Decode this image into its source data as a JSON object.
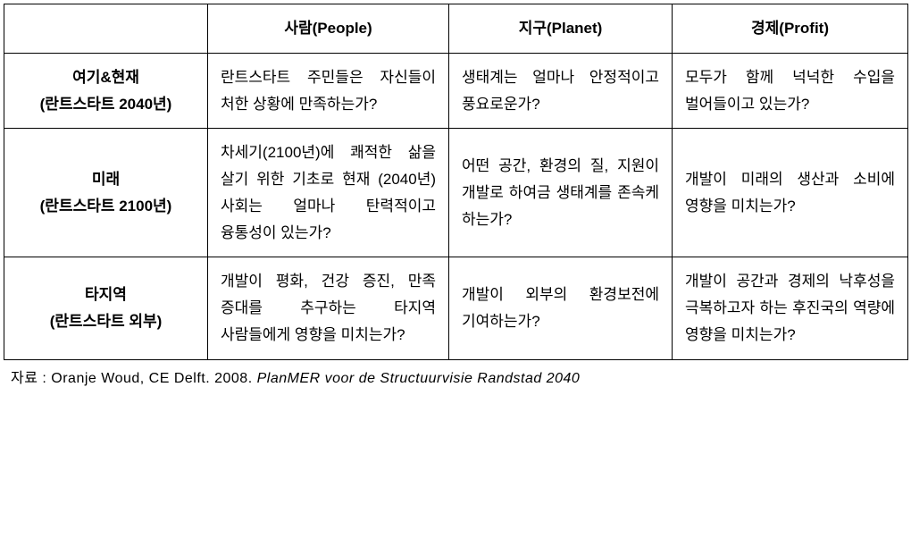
{
  "header": {
    "blank": "",
    "people": "사람(People)",
    "planet": "지구(Planet)",
    "profit": "경제(Profit)"
  },
  "rows": [
    {
      "label_line1": "여기&현재",
      "label_line2": "(란트스타트 2040년)",
      "people": "란트스타트 주민들은 자신들이 처한 상황에 만족하는가?",
      "planet": "생태계는 얼마나 안정적이고 풍요로운가?",
      "profit": "모두가 함께 넉넉한 수입을 벌어들이고 있는가?"
    },
    {
      "label_line1": "미래",
      "label_line2": "(란트스타트 2100년)",
      "people": "차세기(2100년)에 쾌적한 삶을 살기 위한 기초로 현재 (2040년) 사회는 얼마나 탄력적이고 융통성이 있는가?",
      "planet": "어떤 공간, 환경의 질, 지원이 개발로 하여금 생태계를 존속케 하는가?",
      "profit": "개발이 미래의 생산과 소비에 영향을 미치는가?"
    },
    {
      "label_line1": "타지역",
      "label_line2": "(란트스타트 외부)",
      "people": "개발이 평화, 건강 증진, 만족 증대를 추구하는 타지역 사람들에게 영향을 미치는가?",
      "planet": "개발이 외부의 환경보전에 기여하는가?",
      "profit": "개발이 공간과 경제의 낙후성을 극복하고자 하는 후진국의 역량에 영향을 미치는가?"
    }
  ],
  "source": {
    "label": "자료 : ",
    "plain": "Oranje Woud, CE Delft. 2008. ",
    "italic": "PlanMER voor de Structuurvisie Randstad 2040"
  }
}
